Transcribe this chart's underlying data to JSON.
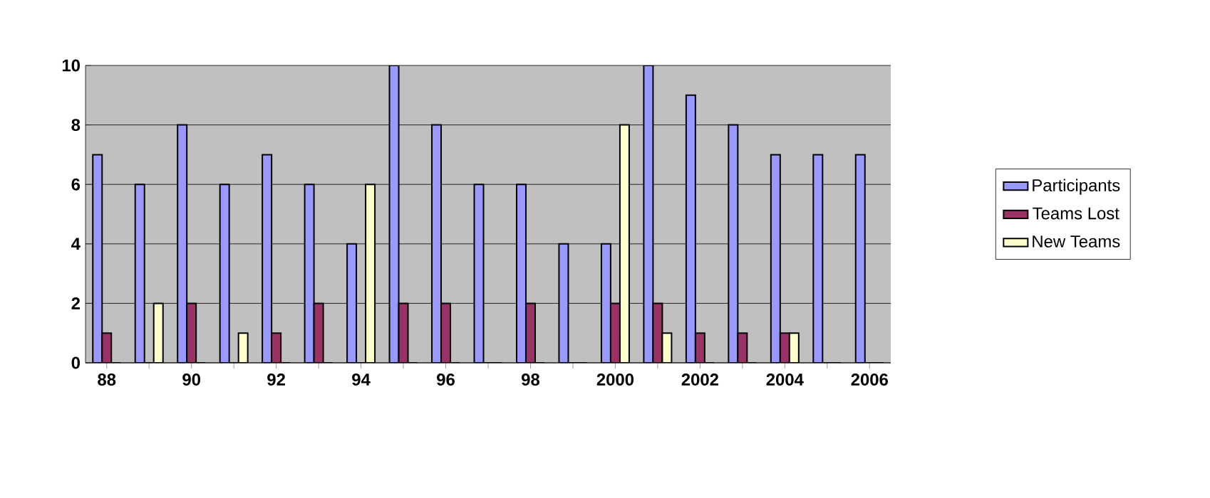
{
  "chart_data": {
    "type": "bar",
    "categories": [
      "88",
      null,
      "90",
      null,
      "92",
      null,
      "94",
      null,
      "96",
      null,
      "98",
      null,
      "2000",
      null,
      "2002",
      null,
      "2004",
      null,
      "2006"
    ],
    "series": [
      {
        "name": "Participants",
        "color": "#9999ff",
        "values": [
          7,
          6,
          8,
          6,
          7,
          6,
          4,
          10,
          8,
          6,
          6,
          4,
          4,
          10,
          9,
          8,
          7,
          7,
          7
        ]
      },
      {
        "name": "Teams Lost",
        "color": "#993366",
        "values": [
          1,
          0,
          2,
          0,
          1,
          2,
          0,
          2,
          2,
          0,
          2,
          0,
          2,
          2,
          1,
          1,
          1,
          0,
          0
        ]
      },
      {
        "name": "New Teams",
        "color": "#ffffcc",
        "values": [
          0,
          2,
          0,
          1,
          0,
          0,
          6,
          0,
          0,
          0,
          0,
          0,
          8,
          1,
          0,
          0,
          1,
          0,
          0
        ]
      }
    ],
    "ylim": [
      0,
      10
    ],
    "yticks": [
      0,
      2,
      4,
      6,
      8,
      10
    ],
    "grid": "y",
    "legend": "right"
  }
}
